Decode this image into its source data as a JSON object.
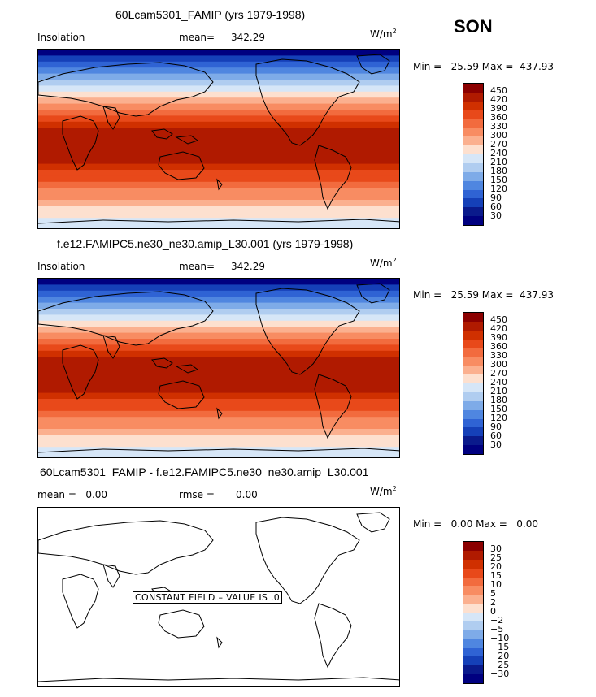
{
  "season": "SON",
  "units": "W/m",
  "units_sup": "2",
  "panels": [
    {
      "title": "60Lcam5301_FAMIP (yrs 1979-1998)",
      "left_label": "Insolation",
      "stat_label": "mean=",
      "stat_value": "342.29",
      "minmax": "Min =   25.59 Max =  437.93",
      "levels": [
        "450",
        "420",
        "390",
        "360",
        "330",
        "300",
        "270",
        "240",
        "210",
        "180",
        "150",
        "120",
        "90",
        "60",
        "30"
      ]
    },
    {
      "title": "f.e12.FAMIPC5.ne30_ne30.amip_L30.001 (yrs 1979-1998)",
      "left_label": "Insolation",
      "stat_label": "mean=",
      "stat_value": "342.29",
      "minmax": "Min =   25.59 Max =  437.93",
      "levels": [
        "450",
        "420",
        "390",
        "360",
        "330",
        "300",
        "270",
        "240",
        "210",
        "180",
        "150",
        "120",
        "90",
        "60",
        "30"
      ]
    },
    {
      "title": "60Lcam5301_FAMIP - f.e12.FAMIPC5.ne30_ne30.amip_L30.001",
      "left_label": "mean =   0.00",
      "stat_label": "rmse =",
      "stat_value": "0.00",
      "minmax": "Min =   0.00 Max =   0.00",
      "levels": [
        "30",
        "25",
        "20",
        "15",
        "10",
        "5",
        "2",
        "0",
        "−2",
        "−5",
        "−10",
        "−15",
        "−20",
        "−25",
        "−30"
      ],
      "note": "CONSTANT FIELD – VALUE IS .0"
    }
  ],
  "colors": {
    "scale": [
      "#8b0000",
      "#b01a00",
      "#d03000",
      "#e8491a",
      "#f26b3e",
      "#f88c62",
      "#fbb08f",
      "#fde0cf",
      "#d6e6f7",
      "#b0cdf0",
      "#7eabe8",
      "#4f86e0",
      "#2f63d4",
      "#1540b8",
      "#0a1a8c",
      "#000080"
    ]
  },
  "chart_data": [
    {
      "type": "heatmap",
      "title": "60Lcam5301_FAMIP (yrs 1979-1998)",
      "variable": "Insolation",
      "units": "W/m^2",
      "mean": 342.29,
      "min": 25.59,
      "max": 437.93,
      "contour_levels": [
        30,
        60,
        90,
        120,
        150,
        180,
        210,
        240,
        270,
        300,
        330,
        360,
        390,
        420,
        450
      ],
      "lat_bands_top_to_bottom": [
        25,
        60,
        90,
        120,
        150,
        180,
        210,
        240,
        270,
        300,
        330,
        360,
        390,
        420,
        437,
        437,
        437,
        437,
        420,
        400,
        380,
        360,
        340,
        320,
        300,
        280,
        260,
        240,
        225,
        210
      ]
    },
    {
      "type": "heatmap",
      "title": "f.e12.FAMIPC5.ne30_ne30.amip_L30.001 (yrs 1979-1998)",
      "variable": "Insolation",
      "units": "W/m^2",
      "mean": 342.29,
      "min": 25.59,
      "max": 437.93,
      "contour_levels": [
        30,
        60,
        90,
        120,
        150,
        180,
        210,
        240,
        270,
        300,
        330,
        360,
        390,
        420,
        450
      ],
      "lat_bands_top_to_bottom": [
        25,
        60,
        90,
        120,
        150,
        180,
        210,
        240,
        270,
        300,
        330,
        360,
        390,
        420,
        437,
        437,
        437,
        437,
        420,
        400,
        380,
        360,
        340,
        320,
        300,
        280,
        260,
        240,
        225,
        210
      ]
    },
    {
      "type": "heatmap",
      "title": "60Lcam5301_FAMIP - f.e12.FAMIPC5.ne30_ne30.amip_L30.001",
      "units": "W/m^2",
      "mean": 0.0,
      "rmse": 0.0,
      "min": 0.0,
      "max": 0.0,
      "contour_levels": [
        -30,
        -25,
        -20,
        -15,
        -10,
        -5,
        -2,
        0,
        2,
        5,
        10,
        15,
        20,
        25,
        30
      ],
      "constant_field_value": 0.0
    }
  ]
}
